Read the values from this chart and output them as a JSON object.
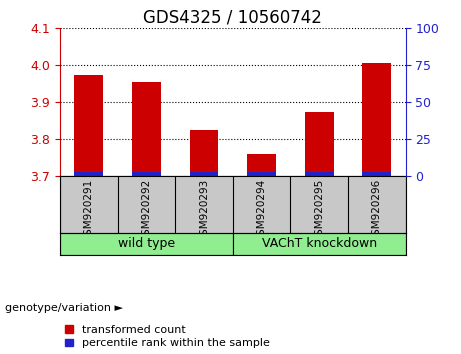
{
  "title": "GDS4325 / 10560742",
  "samples": [
    "GSM920291",
    "GSM920292",
    "GSM920293",
    "GSM920294",
    "GSM920295",
    "GSM920296"
  ],
  "transformed_count": [
    3.975,
    3.955,
    3.825,
    3.76,
    3.875,
    4.005
  ],
  "base_value": 3.7,
  "ylim_left": [
    3.7,
    4.1
  ],
  "ylim_right": [
    0,
    100
  ],
  "yticks_left": [
    3.7,
    3.8,
    3.9,
    4.0,
    4.1
  ],
  "yticks_right": [
    0,
    25,
    50,
    75,
    100
  ],
  "bar_color_red": "#CC0000",
  "bar_color_blue": "#2222CC",
  "blue_bar_height": 0.013,
  "bar_width": 0.5,
  "grid_color": "black",
  "left_tick_color": "#CC0000",
  "right_tick_color": "#2222CC",
  "title_fontsize": 12,
  "tick_fontsize": 9,
  "sample_label_fontsize": 7.5,
  "group_label_fontsize": 9,
  "legend_fontsize": 8,
  "genotype_label": "genotype/variation ►",
  "legend_items": [
    "transformed count",
    "percentile rank within the sample"
  ],
  "plot_bg_color": "#FFFFFF",
  "sample_bg_color": "#C8C8C8",
  "group_bg_color": "#90EE90",
  "wt_label": "wild type",
  "kd_label": "VAChT knockdown"
}
